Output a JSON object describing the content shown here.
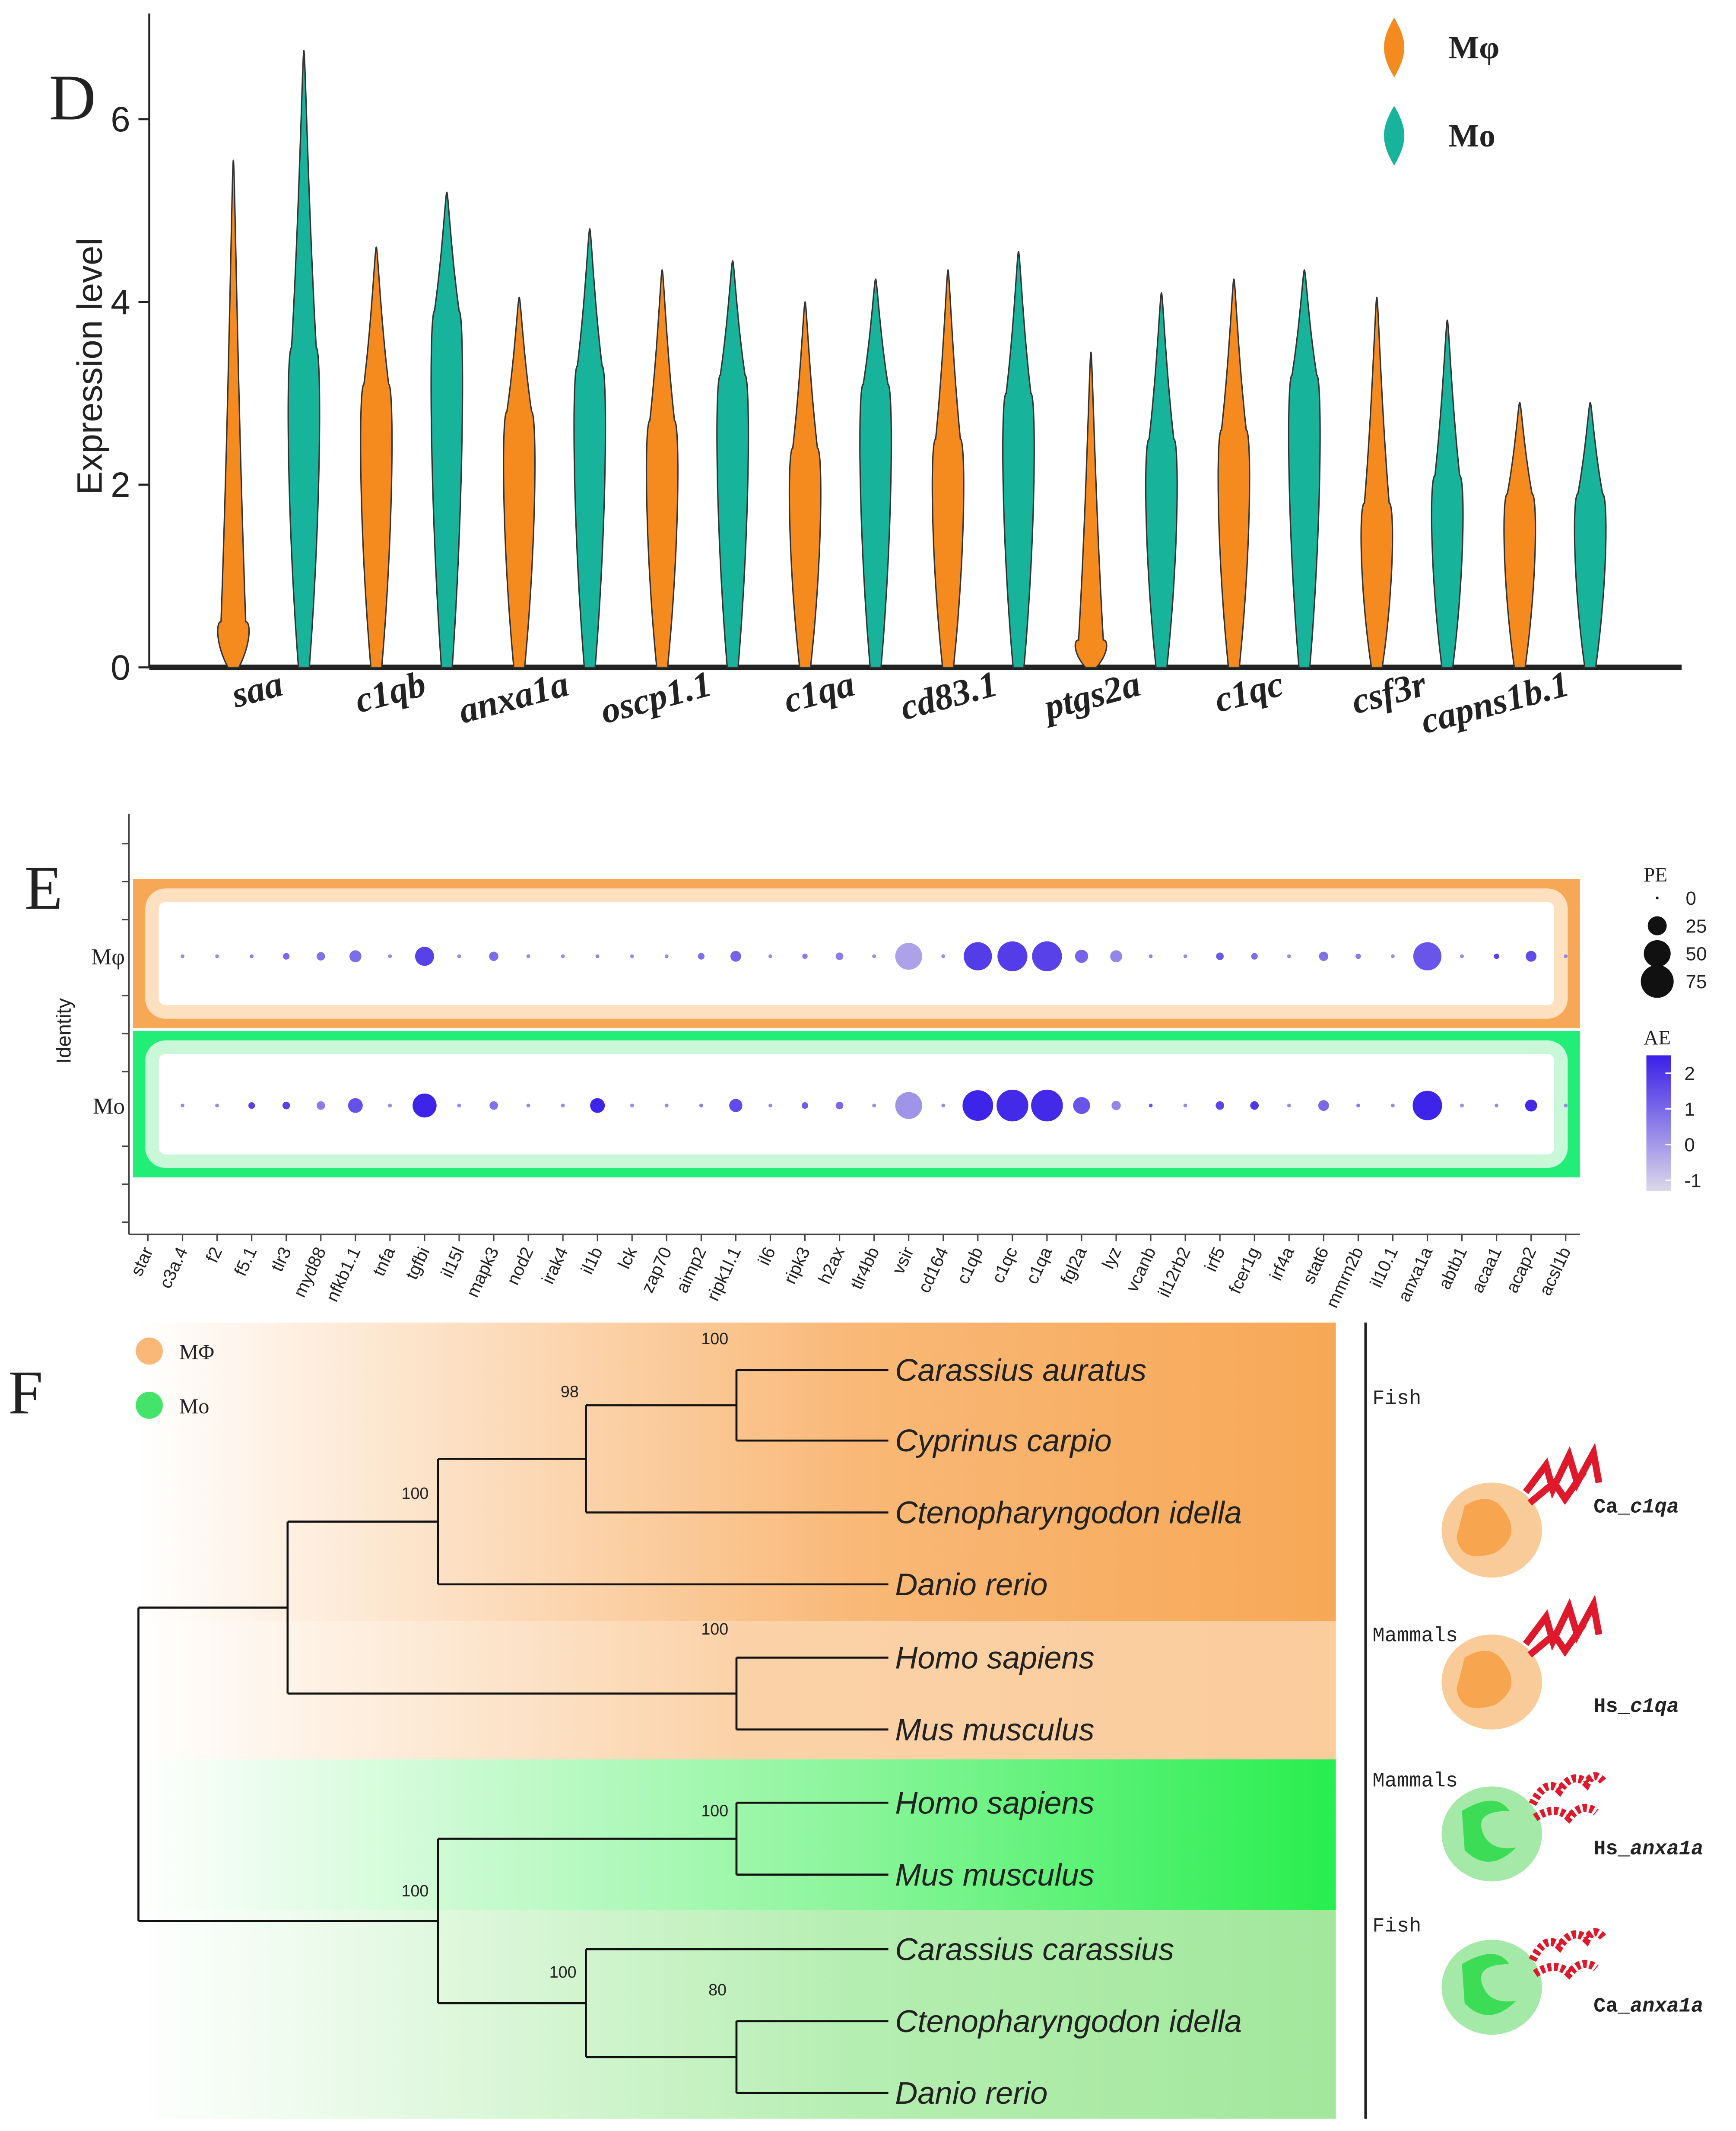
{
  "chart_data": [
    {
      "panel": "D",
      "type": "violin",
      "ylabel": "Expression level",
      "categories": [
        "saa",
        "c1qb",
        "anxa1a",
        "oscp1.1",
        "c1qa",
        "cd83.1",
        "ptgs2a",
        "c1qc",
        "csf3r",
        "capns1b.1"
      ],
      "series": [
        {
          "name": "Mφ",
          "color": "#f58a1f",
          "values": [
            5.55,
            4.6,
            4.05,
            4.35,
            4.0,
            4.35,
            3.45,
            4.25,
            4.05,
            2.9
          ],
          "median": [
            0.5,
            3.1,
            2.8,
            2.7,
            2.4,
            2.5,
            0.3,
            2.6,
            1.8,
            1.9
          ]
        },
        {
          "name": "Mo",
          "color": "#17b39a",
          "values": [
            6.75,
            5.2,
            4.8,
            4.45,
            4.25,
            4.55,
            4.1,
            4.35,
            3.8,
            2.9
          ],
          "median": [
            3.5,
            3.9,
            3.3,
            3.2,
            3.1,
            3.0,
            2.5,
            3.2,
            2.1,
            1.9
          ]
        }
      ],
      "ylim": [
        0,
        6.8
      ],
      "yticks": [
        0,
        2,
        4,
        6
      ]
    },
    {
      "panel": "E",
      "type": "dot",
      "ylabel": "Identity",
      "categories": [
        "star",
        "c3a.4",
        "f2",
        "f5.1",
        "tlr3",
        "myd88",
        "nfkb1.1",
        "tnfa",
        "tgfbi",
        "il15l",
        "mapk3",
        "nod2",
        "irak4",
        "il1b",
        "lck",
        "zap70",
        "aimp2",
        "ripk1l.1",
        "il6",
        "ripk3",
        "h2ax",
        "tlr4bb",
        "vsir",
        "cd164",
        "c1qb",
        "c1qc",
        "c1qa",
        "fgl2a",
        "lyz",
        "vcanb",
        "il12rb2",
        "irf5",
        "fcer1g",
        "irf4a",
        "stat6",
        "mmrn2b",
        "il10.1",
        "anxa1a",
        "abtb1",
        "acaa1",
        "acap2",
        "acsl1b"
      ],
      "series": [
        {
          "name": "Mφ",
          "size": [
            0,
            1,
            1,
            1,
            3,
            5,
            10,
            1,
            25,
            1,
            6,
            1,
            1,
            1,
            1,
            1,
            3,
            8,
            1,
            2,
            4,
            1,
            50,
            1,
            55,
            62,
            62,
            12,
            10,
            1,
            1,
            4,
            3,
            1,
            6,
            2,
            1,
            55,
            1,
            2,
            8,
            1
          ],
          "values": [
            0,
            0.3,
            0.3,
            0.5,
            1,
            0.8,
            0.9,
            0.3,
            1.8,
            0.3,
            0.9,
            0.3,
            0.3,
            0.5,
            0.3,
            0.3,
            0.9,
            1.1,
            0.3,
            0.6,
            0.6,
            0.3,
            -0.2,
            0.3,
            1.9,
            1.9,
            1.8,
            1.1,
            0.4,
            0.5,
            0.3,
            1.3,
            0.9,
            0.3,
            0.8,
            0.6,
            0.3,
            1.4,
            0.3,
            1.8,
            1.6,
            0.3
          ]
        },
        {
          "name": "Mo",
          "size": [
            0,
            1,
            1,
            3,
            4,
            5,
            15,
            1,
            40,
            1,
            5,
            1,
            1,
            15,
            1,
            1,
            1,
            12,
            1,
            3,
            4,
            1,
            50,
            1,
            65,
            70,
            70,
            20,
            6,
            1,
            1,
            5,
            5,
            1,
            8,
            1,
            1,
            60,
            1,
            1,
            10,
            1
          ],
          "values": [
            0,
            0.3,
            0.3,
            1.8,
            1.8,
            0.6,
            1.5,
            0.3,
            2.4,
            0.3,
            0.8,
            0.3,
            0.3,
            2.4,
            0.3,
            0.3,
            0.6,
            1.6,
            0.3,
            1.2,
            1.0,
            0.3,
            0.1,
            0.3,
            2.4,
            2.3,
            2.3,
            1.4,
            0.4,
            1.4,
            0.3,
            1.7,
            2.0,
            0.3,
            1.0,
            0.6,
            0.3,
            2.4,
            0.3,
            0.3,
            2.3,
            0.3
          ]
        }
      ],
      "size_title": "PE",
      "size_ticks": [
        0,
        25,
        50,
        75
      ],
      "color_title": "AE",
      "colorlim": [
        -1.3,
        2.5
      ],
      "color_ticks": [
        -1,
        0,
        1,
        2
      ],
      "color_range": [
        "#dcd8ea",
        "#3a1fe8"
      ]
    }
  ],
  "tree": {
    "panel": "F",
    "legend": [
      {
        "name": "MΦ",
        "color": "#f9b877"
      },
      {
        "name": "Mo",
        "color": "#44e36a"
      }
    ],
    "leaves": [
      {
        "name": "Carassius auratus",
        "color": "#d9243a"
      },
      {
        "name": "Cyprinus carpio",
        "color": "#111"
      },
      {
        "name": "Ctenopharyngodon idella",
        "color": "#111"
      },
      {
        "name": "Danio rerio",
        "color": "#111"
      },
      {
        "name": "Homo sapiens",
        "color": "#d9243a"
      },
      {
        "name": "Mus musculus",
        "color": "#111"
      },
      {
        "name": "Homo sapiens",
        "color": "#d9243a"
      },
      {
        "name": "Mus musculus",
        "color": "#111"
      },
      {
        "name": "Carassius carassius",
        "color": "#d9243a"
      },
      {
        "name": "Ctenopharyngodon idella",
        "color": "#111"
      },
      {
        "name": "Danio rerio",
        "color": "#111"
      }
    ],
    "support": [
      100,
      98,
      100,
      100,
      100,
      80,
      100,
      100
    ],
    "groups": [
      "Fish",
      "Mammals",
      "Mammals",
      "Fish"
    ],
    "proteins": [
      {
        "prefix": "Ca_",
        "gene": "c1qa"
      },
      {
        "prefix": "Hs_",
        "gene": "c1qa"
      },
      {
        "prefix": "Hs_",
        "gene": "anxa1a"
      },
      {
        "prefix": "Ca_",
        "gene": "anxa1a"
      }
    ]
  }
}
